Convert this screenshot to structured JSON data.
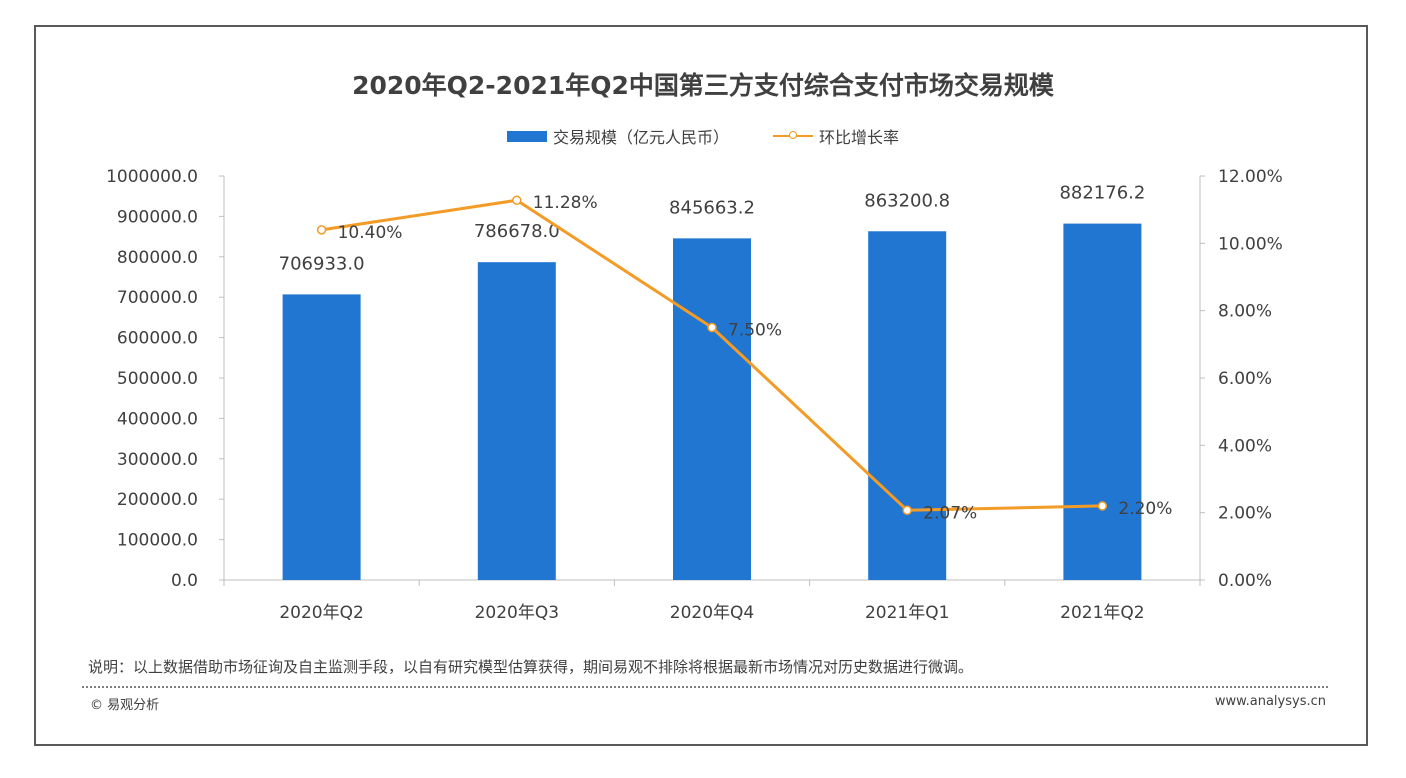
{
  "chart_data": {
    "type": "bar",
    "title": "2020年Q2-2021年Q2中国第三方支付综合支付市场交易规模",
    "categories": [
      "2020年Q2",
      "2020年Q3",
      "2020年Q4",
      "2021年Q1",
      "2021年Q2"
    ],
    "series": [
      {
        "name": "交易规模（亿元人民币）",
        "type": "bar",
        "axis": "left",
        "values": [
          706933.0,
          786678.0,
          845663.2,
          863200.8,
          882176.2
        ],
        "labels": [
          "706933.0",
          "786678.0",
          "845663.2",
          "863200.8",
          "882176.2"
        ],
        "color": "#2176d2"
      },
      {
        "name": "环比增长率",
        "type": "line",
        "axis": "right",
        "values": [
          10.4,
          11.28,
          7.5,
          2.07,
          2.2
        ],
        "labels": [
          "10.40%",
          "11.28%",
          "7.50%",
          "2.07%",
          "2.20%"
        ],
        "color": "#f39b27"
      }
    ],
    "ylim_left": [
      0,
      1000000
    ],
    "yticks_left": [
      "0.0",
      "100000.0",
      "200000.0",
      "300000.0",
      "400000.0",
      "500000.0",
      "600000.0",
      "700000.0",
      "800000.0",
      "900000.0",
      "1000000.0"
    ],
    "ylim_right": [
      0,
      12
    ],
    "yticks_right": [
      "0.00%",
      "2.00%",
      "4.00%",
      "6.00%",
      "8.00%",
      "10.00%",
      "12.00%"
    ],
    "legend": "top-center",
    "grid": false
  },
  "note": "说明：以上数据借助市场征询及自主监测手段，以自有研究模型估算获得，期间易观不排除将根据最新市场情况对历史数据进行微调。",
  "footer": {
    "copyright": "© 易观分析",
    "website": "www.analysys.cn"
  }
}
